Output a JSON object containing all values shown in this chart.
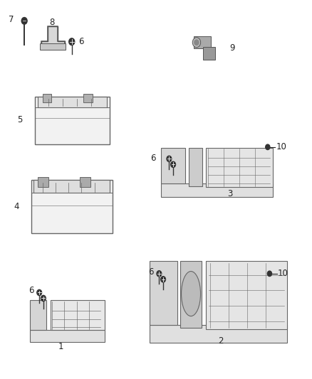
{
  "bg_color": "#ffffff",
  "fig_width": 4.38,
  "fig_height": 5.33,
  "dpi": 100,
  "line_color": "#444444",
  "text_color": "#222222",
  "part_fontsize": 8.5
}
